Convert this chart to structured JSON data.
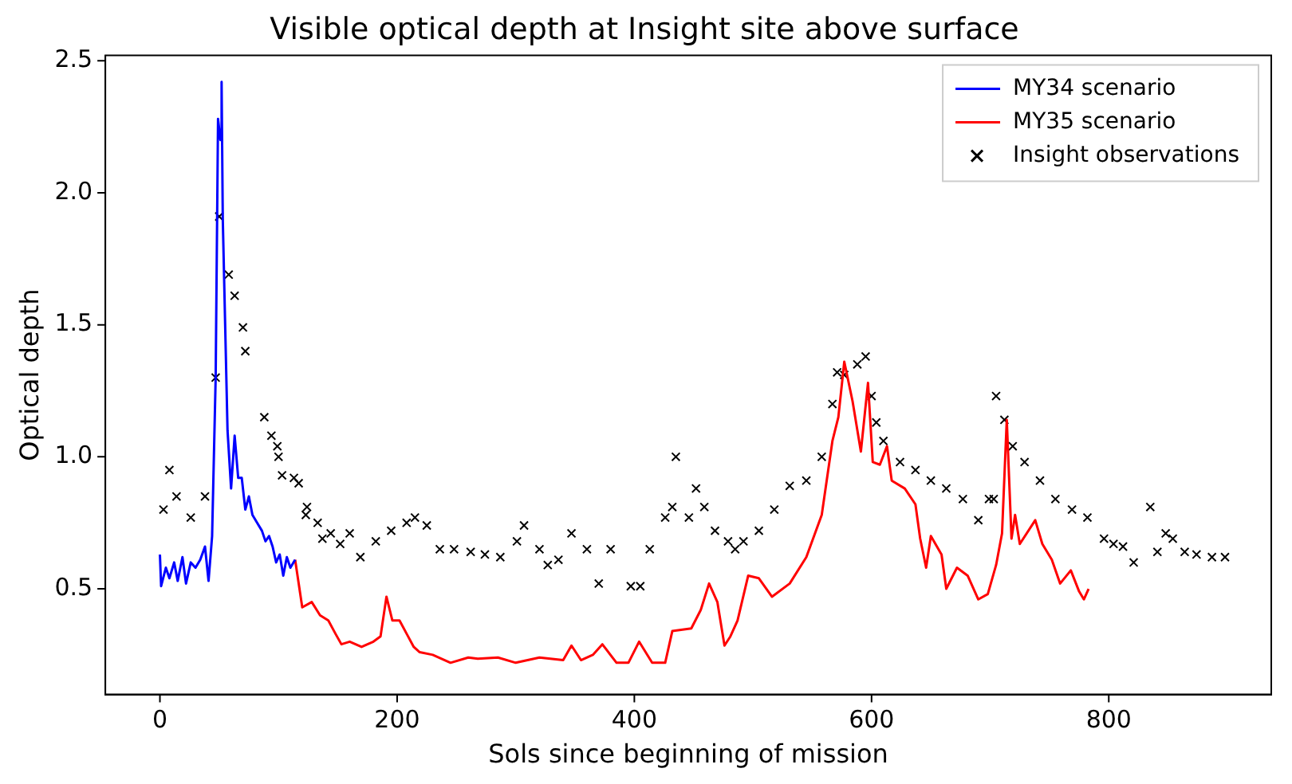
{
  "chart_data": {
    "type": "line",
    "title": "Visible optical depth at Insight site above surface",
    "xlabel": "Sols since beginning of mission",
    "ylabel": "Optical depth",
    "xlim": [
      -46,
      937
    ],
    "ylim": [
      0.1,
      2.52
    ],
    "xticks": [
      0,
      200,
      400,
      600,
      800
    ],
    "yticks": [
      0.5,
      {
        "value": 1,
        "label": "1.0"
      },
      1.5,
      {
        "value": 2,
        "label": "2.0"
      },
      2.5
    ],
    "grid": false,
    "legend": "top right",
    "series": [
      {
        "name": "MY34 scenario",
        "color": "#0000ff",
        "line_style": "solid",
        "marker": "none",
        "x": [
          0,
          1,
          5,
          8,
          12,
          15,
          19,
          22,
          26,
          30,
          34,
          38,
          41,
          44,
          47,
          49,
          51,
          52,
          53,
          55,
          57,
          60,
          63,
          66,
          69,
          72,
          75,
          78,
          82,
          86,
          89,
          92,
          95,
          98,
          101,
          104,
          107,
          110,
          114
        ],
        "values": [
          0.63,
          0.51,
          0.58,
          0.54,
          0.6,
          0.53,
          0.62,
          0.52,
          0.6,
          0.58,
          0.61,
          0.66,
          0.53,
          0.7,
          1.3,
          2.28,
          2.2,
          2.42,
          1.9,
          1.5,
          1.1,
          0.88,
          1.08,
          0.92,
          0.92,
          0.8,
          0.85,
          0.78,
          0.75,
          0.72,
          0.68,
          0.7,
          0.66,
          0.6,
          0.63,
          0.55,
          0.62,
          0.58,
          0.61
        ]
      },
      {
        "name": "MY35 scenario",
        "color": "#ff0000",
        "line_style": "solid",
        "marker": "none",
        "x": [
          114,
          120,
          128,
          135,
          142,
          148,
          153,
          160,
          170,
          180,
          186,
          191,
          196,
          202,
          208,
          214,
          219,
          230,
          245,
          260,
          268,
          285,
          300,
          320,
          340,
          347,
          355,
          365,
          373,
          385,
          395,
          404,
          415,
          426,
          432,
          448,
          456,
          463,
          470,
          476,
          481,
          487,
          496,
          505,
          516,
          531,
          545,
          558,
          567,
          572,
          577,
          584,
          591,
          597,
          601,
          607,
          613,
          617,
          628,
          637,
          641,
          646,
          650,
          659,
          663,
          672,
          681,
          690,
          698,
          705,
          710,
          714,
          718,
          721,
          725,
          738,
          744,
          752,
          759,
          768,
          775,
          779,
          783
        ],
        "values": [
          0.61,
          0.43,
          0.45,
          0.4,
          0.38,
          0.33,
          0.29,
          0.3,
          0.28,
          0.3,
          0.32,
          0.47,
          0.38,
          0.38,
          0.33,
          0.28,
          0.26,
          0.25,
          0.22,
          0.24,
          0.235,
          0.24,
          0.22,
          0.24,
          0.23,
          0.285,
          0.23,
          0.25,
          0.29,
          0.22,
          0.22,
          0.3,
          0.22,
          0.22,
          0.34,
          0.35,
          0.42,
          0.52,
          0.45,
          0.285,
          0.32,
          0.38,
          0.55,
          0.54,
          0.47,
          0.52,
          0.62,
          0.78,
          1.06,
          1.15,
          1.36,
          1.21,
          1.02,
          1.28,
          0.98,
          0.97,
          1.04,
          0.91,
          0.88,
          0.82,
          0.69,
          0.58,
          0.7,
          0.63,
          0.5,
          0.58,
          0.55,
          0.46,
          0.48,
          0.59,
          0.71,
          1.14,
          0.69,
          0.78,
          0.67,
          0.76,
          0.67,
          0.61,
          0.52,
          0.57,
          0.49,
          0.46,
          0.5
        ]
      },
      {
        "name": "Insight observations",
        "type": "scatter",
        "color": "#000000",
        "marker": "cross",
        "x": [
          3,
          8,
          14,
          26,
          38,
          47,
          50,
          58,
          63,
          70,
          72,
          88,
          94,
          99,
          100,
          103,
          113,
          117,
          123,
          124,
          133,
          137,
          144,
          152,
          160,
          169,
          182,
          195,
          208,
          215,
          225,
          236,
          248,
          262,
          274,
          287,
          301,
          307,
          320,
          327,
          336,
          347,
          360,
          370,
          380,
          397,
          405,
          413,
          426,
          432,
          435,
          446,
          452,
          459,
          468,
          479,
          485,
          492,
          505,
          518,
          531,
          545,
          558,
          567,
          571,
          577,
          588,
          595,
          600,
          604,
          610,
          624,
          637,
          650,
          663,
          677,
          690,
          699,
          703,
          705,
          712,
          719,
          729,
          742,
          755,
          769,
          782,
          796,
          804,
          812,
          821,
          835,
          841,
          848,
          854,
          864,
          874,
          887,
          898
        ],
        "values": [
          0.8,
          0.95,
          0.85,
          0.77,
          0.85,
          1.3,
          1.91,
          1.69,
          1.61,
          1.49,
          1.4,
          1.15,
          1.08,
          1.04,
          1.0,
          0.93,
          0.92,
          0.9,
          0.78,
          0.81,
          0.75,
          0.69,
          0.71,
          0.67,
          0.71,
          0.62,
          0.68,
          0.72,
          0.75,
          0.77,
          0.74,
          0.65,
          0.65,
          0.64,
          0.63,
          0.62,
          0.68,
          0.74,
          0.65,
          0.59,
          0.61,
          0.71,
          0.65,
          0.52,
          0.65,
          0.51,
          0.51,
          0.65,
          0.77,
          0.81,
          1.0,
          0.77,
          0.88,
          0.81,
          0.72,
          0.68,
          0.65,
          0.68,
          0.72,
          0.8,
          0.89,
          0.91,
          1.0,
          1.2,
          1.32,
          1.31,
          1.35,
          1.38,
          1.23,
          1.13,
          1.06,
          0.98,
          0.95,
          0.91,
          0.88,
          0.84,
          0.76,
          0.84,
          0.84,
          1.23,
          1.14,
          1.04,
          0.98,
          0.91,
          0.84,
          0.8,
          0.77,
          0.69,
          0.67,
          0.66,
          0.6,
          0.81,
          0.64,
          0.71,
          0.69,
          0.64,
          0.63,
          0.62,
          0.62
        ]
      }
    ]
  }
}
